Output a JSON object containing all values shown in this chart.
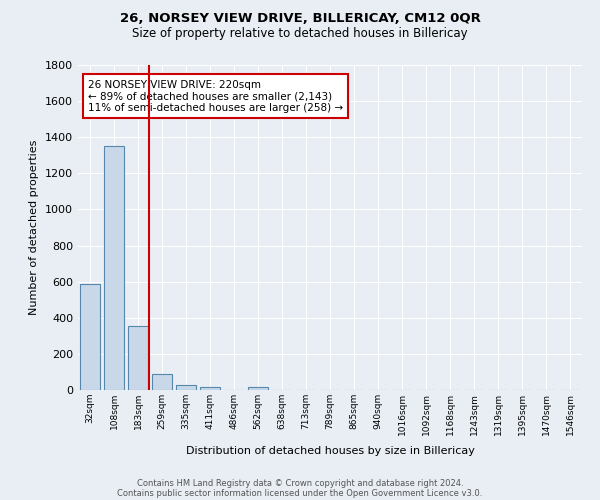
{
  "title": "26, NORSEY VIEW DRIVE, BILLERICAY, CM12 0QR",
  "subtitle": "Size of property relative to detached houses in Billericay",
  "xlabel": "Distribution of detached houses by size in Billericay",
  "ylabel": "Number of detached properties",
  "footer_line1": "Contains HM Land Registry data © Crown copyright and database right 2024.",
  "footer_line2": "Contains public sector information licensed under the Open Government Licence v3.0.",
  "bin_labels": [
    "32sqm",
    "108sqm",
    "183sqm",
    "259sqm",
    "335sqm",
    "411sqm",
    "486sqm",
    "562sqm",
    "638sqm",
    "713sqm",
    "789sqm",
    "865sqm",
    "940sqm",
    "1016sqm",
    "1092sqm",
    "1168sqm",
    "1243sqm",
    "1319sqm",
    "1395sqm",
    "1470sqm",
    "1546sqm"
  ],
  "bar_values": [
    585,
    1350,
    355,
    90,
    28,
    18,
    0,
    15,
    0,
    0,
    0,
    0,
    0,
    0,
    0,
    0,
    0,
    0,
    0,
    0,
    0
  ],
  "bar_color": "#c8d8e8",
  "bar_edge_color": "#5588aa",
  "background_color": "#e8eef4",
  "grid_color": "#ffffff",
  "red_line_x": 2.47,
  "ylim": [
    0,
    1800
  ],
  "yticks": [
    0,
    200,
    400,
    600,
    800,
    1000,
    1200,
    1400,
    1600,
    1800
  ],
  "annotation_text": "26 NORSEY VIEW DRIVE: 220sqm\n← 89% of detached houses are smaller (2,143)\n11% of semi-detached houses are larger (258) →",
  "annotation_box_color": "#ffffff",
  "annotation_box_edge": "#cc0000"
}
